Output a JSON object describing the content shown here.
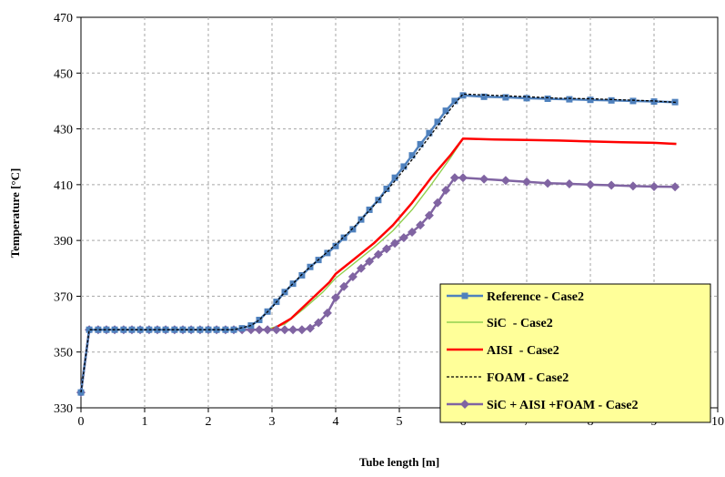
{
  "chart_data": {
    "type": "line",
    "xlabel": "Tube length [m]",
    "ylabel": "Temperature [°C]",
    "xlim": [
      0,
      10
    ],
    "ylim": [
      330,
      470
    ],
    "xticks": [
      "0",
      "1",
      "2",
      "3",
      "4",
      "5",
      "6",
      "7",
      "8",
      "9",
      "10"
    ],
    "yticks": [
      "330",
      "350",
      "370",
      "390",
      "410",
      "430",
      "450",
      "470"
    ],
    "grid": true,
    "legend_position": "bottom-right",
    "legend_background": "#ffff99",
    "series": [
      {
        "name": "Reference - Case2",
        "color": "#4f81bd",
        "marker": "square",
        "line_style": "solid",
        "x": [
          0,
          0.13,
          0.27,
          0.4,
          0.53,
          0.67,
          0.8,
          0.93,
          1.07,
          1.2,
          1.33,
          1.47,
          1.6,
          1.73,
          1.87,
          2.0,
          2.13,
          2.27,
          2.4,
          2.53,
          2.67,
          2.8,
          2.93,
          3.07,
          3.2,
          3.33,
          3.47,
          3.6,
          3.73,
          3.87,
          4.0,
          4.13,
          4.27,
          4.4,
          4.53,
          4.67,
          4.8,
          4.93,
          5.07,
          5.2,
          5.33,
          5.47,
          5.6,
          5.73,
          5.87,
          6.0,
          6.33,
          6.67,
          7.0,
          7.33,
          7.67,
          8.0,
          8.33,
          8.67,
          9.0,
          9.33
        ],
        "y": [
          335.5,
          358,
          358,
          358,
          358,
          358,
          358,
          358,
          358,
          358,
          358,
          358,
          358,
          358,
          358,
          358,
          358,
          358,
          358,
          358.5,
          359.5,
          361.5,
          364.5,
          368,
          371.5,
          374.5,
          377.5,
          380.5,
          383,
          385.5,
          388,
          391,
          394,
          397.5,
          401,
          404.5,
          408.5,
          412.5,
          416.5,
          420.5,
          424.5,
          428.5,
          432.5,
          436.5,
          440,
          442,
          441.5,
          441.3,
          441,
          440.8,
          440.6,
          440.4,
          440.2,
          440,
          439.8,
          439.6
        ]
      },
      {
        "name": "SiC  - Case2",
        "color": "#92d050",
        "marker": "none",
        "line_style": "solid",
        "x": [
          0,
          0.13,
          2.5,
          2.9,
          3.2,
          3.5,
          3.8,
          4.0,
          4.3,
          4.6,
          4.9,
          5.2,
          5.5,
          5.8,
          6.0,
          6.5,
          7.0,
          7.5,
          8.0,
          8.5,
          9.0,
          9.35
        ],
        "y": [
          335.5,
          358,
          358,
          358,
          360,
          365.5,
          371.5,
          376.5,
          382,
          387.5,
          393.5,
          401,
          410,
          419.5,
          426.5,
          426.2,
          426,
          425.8,
          425.5,
          425.2,
          425,
          424.8
        ]
      },
      {
        "name": "AISI  - Case2",
        "color": "#ff0000",
        "marker": "none",
        "line_style": "solid",
        "x": [
          0,
          0.13,
          2.5,
          3.0,
          3.3,
          3.6,
          3.9,
          4.0,
          4.3,
          4.6,
          4.9,
          5.2,
          5.5,
          5.8,
          6.0,
          6.5,
          7.0,
          7.5,
          8.0,
          8.5,
          9.0,
          9.35
        ],
        "y": [
          335.5,
          358,
          358,
          358,
          362,
          368.5,
          375,
          378,
          383.5,
          389,
          395.5,
          403.5,
          412.5,
          420.5,
          426.5,
          426.2,
          426,
          425.8,
          425.5,
          425.2,
          425,
          424.6
        ]
      },
      {
        "name": "FOAM - Case2",
        "color": "#000000",
        "marker": "none",
        "line_style": "dashed",
        "x": [
          0,
          0.13,
          2.4,
          2.67,
          2.8,
          3.0,
          3.2,
          3.5,
          3.8,
          4.0,
          4.3,
          4.6,
          4.9,
          5.2,
          5.5,
          5.8,
          6.0,
          6.5,
          7.0,
          7.5,
          8.0,
          8.5,
          9.0,
          9.35
        ],
        "y": [
          335.5,
          358,
          358,
          359.5,
          361.5,
          366,
          371.5,
          378.5,
          384.5,
          388.5,
          395,
          402.5,
          410.5,
          419,
          428,
          437,
          442.5,
          442,
          441.5,
          441,
          440.8,
          440.4,
          440,
          439.5
        ]
      },
      {
        "name": "SiC + AISI +FOAM - Case2",
        "color": "#8064a2",
        "marker": "diamond",
        "line_style": "solid",
        "x": [
          0,
          0.13,
          0.27,
          0.4,
          0.53,
          0.67,
          0.8,
          0.93,
          1.07,
          1.2,
          1.33,
          1.47,
          1.6,
          1.73,
          1.87,
          2.0,
          2.13,
          2.27,
          2.4,
          2.53,
          2.67,
          2.8,
          2.93,
          3.07,
          3.2,
          3.33,
          3.47,
          3.6,
          3.73,
          3.87,
          4.0,
          4.13,
          4.27,
          4.4,
          4.53,
          4.67,
          4.8,
          4.93,
          5.07,
          5.2,
          5.33,
          5.47,
          5.6,
          5.73,
          5.87,
          6.0,
          6.33,
          6.67,
          7.0,
          7.33,
          7.67,
          8.0,
          8.33,
          8.67,
          9.0,
          9.33
        ],
        "y": [
          335.5,
          358,
          358,
          358,
          358,
          358,
          358,
          358,
          358,
          358,
          358,
          358,
          358,
          358,
          358,
          358,
          358,
          358,
          358,
          358,
          358,
          358,
          358,
          358,
          358,
          358,
          358,
          358.5,
          360.5,
          364,
          369.5,
          373.5,
          377,
          380,
          382.5,
          385,
          387,
          389,
          391,
          393,
          395.5,
          399,
          403.5,
          408,
          412.5,
          412.5,
          412,
          411.5,
          411,
          410.5,
          410.3,
          410,
          409.8,
          409.5,
          409.3,
          409.2
        ]
      }
    ]
  }
}
